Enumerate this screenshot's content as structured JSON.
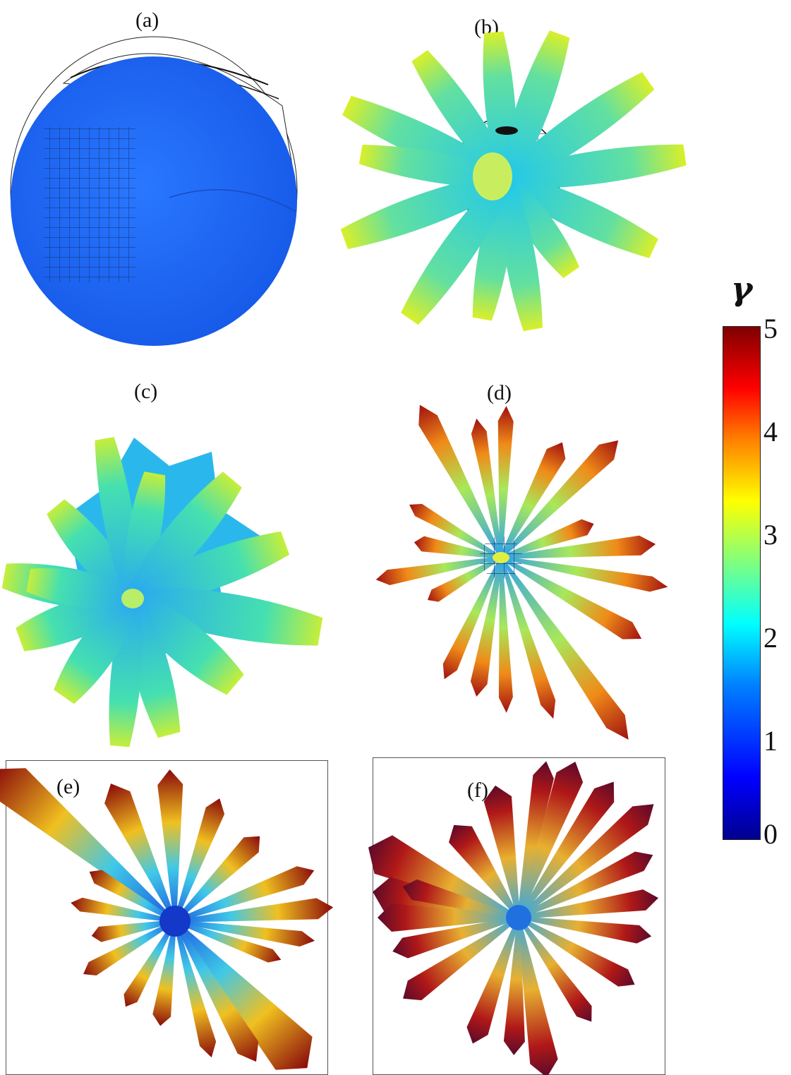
{
  "panels": [
    {
      "label": "(a)"
    },
    {
      "label": "(b)"
    },
    {
      "label": "(c)"
    },
    {
      "label": "(d)"
    },
    {
      "label": "(e)"
    },
    {
      "label": "(f)"
    }
  ],
  "colorbar": {
    "symbol": "γ",
    "ticks": [
      "5",
      "4",
      "3",
      "2",
      "1",
      "0"
    ]
  }
}
